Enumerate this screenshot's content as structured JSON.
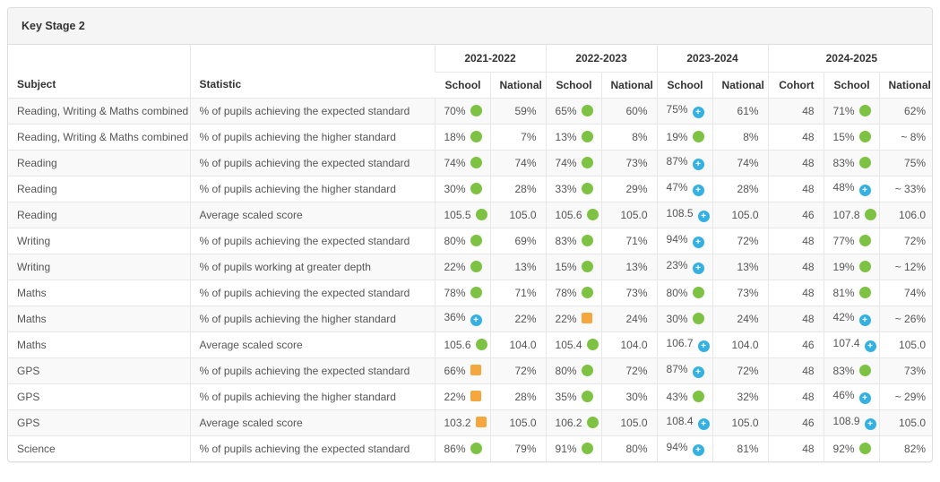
{
  "panel": {
    "title": "Key Stage 2"
  },
  "icon_colors": {
    "green-circle": "#7DC242",
    "blue-plus-circle": "#35B1E1",
    "orange-square": "#F5A63C"
  },
  "table": {
    "headers": {
      "subject": "Subject",
      "statistic": "Statistic",
      "groups": [
        {
          "label": "2021-2022",
          "span": 2
        },
        {
          "label": "2022-2023",
          "span": 2
        },
        {
          "label": "2023-2024",
          "span": 2
        },
        {
          "label": "2024-2025",
          "span": 3
        }
      ],
      "sub": [
        "School",
        "National",
        "School",
        "National",
        "School",
        "National",
        "Cohort",
        "School",
        "National"
      ]
    },
    "rows": [
      {
        "subject": "Reading, Writing & Maths combined",
        "statistic": "% of pupils achieving the expected standard",
        "cells": [
          {
            "v": "70%",
            "icon": "green-circle"
          },
          {
            "v": "59%"
          },
          {
            "v": "65%",
            "icon": "green-circle"
          },
          {
            "v": "60%"
          },
          {
            "v": "75%",
            "icon": "blue-plus-circle"
          },
          {
            "v": "61%"
          },
          {
            "v": "48"
          },
          {
            "v": "71%",
            "icon": "green-circle"
          },
          {
            "v": "62%"
          }
        ]
      },
      {
        "subject": "Reading, Writing & Maths combined",
        "statistic": "% of pupils achieving the higher standard",
        "cells": [
          {
            "v": "18%",
            "icon": "green-circle"
          },
          {
            "v": "7%"
          },
          {
            "v": "13%",
            "icon": "green-circle"
          },
          {
            "v": "8%"
          },
          {
            "v": "19%",
            "icon": "green-circle"
          },
          {
            "v": "8%"
          },
          {
            "v": "48"
          },
          {
            "v": "15%",
            "icon": "green-circle"
          },
          {
            "v": "~ 8%"
          }
        ]
      },
      {
        "subject": "Reading",
        "statistic": "% of pupils achieving the expected standard",
        "cells": [
          {
            "v": "74%",
            "icon": "green-circle"
          },
          {
            "v": "74%"
          },
          {
            "v": "74%",
            "icon": "green-circle"
          },
          {
            "v": "73%"
          },
          {
            "v": "87%",
            "icon": "blue-plus-circle"
          },
          {
            "v": "74%"
          },
          {
            "v": "48"
          },
          {
            "v": "83%",
            "icon": "green-circle"
          },
          {
            "v": "75%"
          }
        ]
      },
      {
        "subject": "Reading",
        "statistic": "% of pupils achieving the higher standard",
        "cells": [
          {
            "v": "30%",
            "icon": "green-circle"
          },
          {
            "v": "28%"
          },
          {
            "v": "33%",
            "icon": "green-circle"
          },
          {
            "v": "29%"
          },
          {
            "v": "47%",
            "icon": "blue-plus-circle"
          },
          {
            "v": "28%"
          },
          {
            "v": "48"
          },
          {
            "v": "48%",
            "icon": "blue-plus-circle"
          },
          {
            "v": "~ 33%"
          }
        ]
      },
      {
        "subject": "Reading",
        "statistic": "Average scaled score",
        "cells": [
          {
            "v": "105.5",
            "icon": "green-circle"
          },
          {
            "v": "105.0"
          },
          {
            "v": "105.6",
            "icon": "green-circle"
          },
          {
            "v": "105.0"
          },
          {
            "v": "108.5",
            "icon": "blue-plus-circle"
          },
          {
            "v": "105.0"
          },
          {
            "v": "46"
          },
          {
            "v": "107.8",
            "icon": "green-circle"
          },
          {
            "v": "106.0"
          }
        ]
      },
      {
        "subject": "Writing",
        "statistic": "% of pupils achieving the expected standard",
        "cells": [
          {
            "v": "80%",
            "icon": "green-circle"
          },
          {
            "v": "69%"
          },
          {
            "v": "83%",
            "icon": "green-circle"
          },
          {
            "v": "71%"
          },
          {
            "v": "94%",
            "icon": "blue-plus-circle"
          },
          {
            "v": "72%"
          },
          {
            "v": "48"
          },
          {
            "v": "77%",
            "icon": "green-circle"
          },
          {
            "v": "72%"
          }
        ]
      },
      {
        "subject": "Writing",
        "statistic": "% of pupils working at greater depth",
        "cells": [
          {
            "v": "22%",
            "icon": "green-circle"
          },
          {
            "v": "13%"
          },
          {
            "v": "15%",
            "icon": "green-circle"
          },
          {
            "v": "13%"
          },
          {
            "v": "23%",
            "icon": "blue-plus-circle"
          },
          {
            "v": "13%"
          },
          {
            "v": "48"
          },
          {
            "v": "19%",
            "icon": "green-circle"
          },
          {
            "v": "~ 12%"
          }
        ]
      },
      {
        "subject": "Maths",
        "statistic": "% of pupils achieving the expected standard",
        "cells": [
          {
            "v": "78%",
            "icon": "green-circle"
          },
          {
            "v": "71%"
          },
          {
            "v": "78%",
            "icon": "green-circle"
          },
          {
            "v": "73%"
          },
          {
            "v": "80%",
            "icon": "green-circle"
          },
          {
            "v": "73%"
          },
          {
            "v": "48"
          },
          {
            "v": "81%",
            "icon": "green-circle"
          },
          {
            "v": "74%"
          }
        ]
      },
      {
        "subject": "Maths",
        "statistic": "% of pupils achieving the higher standard",
        "cells": [
          {
            "v": "36%",
            "icon": "blue-plus-circle"
          },
          {
            "v": "22%"
          },
          {
            "v": "22%",
            "icon": "orange-square"
          },
          {
            "v": "24%"
          },
          {
            "v": "30%",
            "icon": "green-circle"
          },
          {
            "v": "24%"
          },
          {
            "v": "48"
          },
          {
            "v": "42%",
            "icon": "blue-plus-circle"
          },
          {
            "v": "~ 26%"
          }
        ]
      },
      {
        "subject": "Maths",
        "statistic": "Average scaled score",
        "cells": [
          {
            "v": "105.6",
            "icon": "green-circle"
          },
          {
            "v": "104.0"
          },
          {
            "v": "105.4",
            "icon": "green-circle"
          },
          {
            "v": "104.0"
          },
          {
            "v": "106.7",
            "icon": "blue-plus-circle"
          },
          {
            "v": "104.0"
          },
          {
            "v": "46"
          },
          {
            "v": "107.4",
            "icon": "blue-plus-circle"
          },
          {
            "v": "105.0"
          }
        ]
      },
      {
        "subject": "GPS",
        "statistic": "% of pupils achieving the expected standard",
        "cells": [
          {
            "v": "66%",
            "icon": "orange-square"
          },
          {
            "v": "72%"
          },
          {
            "v": "80%",
            "icon": "green-circle"
          },
          {
            "v": "72%"
          },
          {
            "v": "87%",
            "icon": "blue-plus-circle"
          },
          {
            "v": "72%"
          },
          {
            "v": "48"
          },
          {
            "v": "83%",
            "icon": "green-circle"
          },
          {
            "v": "73%"
          }
        ]
      },
      {
        "subject": "GPS",
        "statistic": "% of pupils achieving the higher standard",
        "cells": [
          {
            "v": "22%",
            "icon": "orange-square"
          },
          {
            "v": "28%"
          },
          {
            "v": "35%",
            "icon": "green-circle"
          },
          {
            "v": "30%"
          },
          {
            "v": "43%",
            "icon": "green-circle"
          },
          {
            "v": "32%"
          },
          {
            "v": "48"
          },
          {
            "v": "46%",
            "icon": "blue-plus-circle"
          },
          {
            "v": "~ 29%"
          }
        ]
      },
      {
        "subject": "GPS",
        "statistic": "Average scaled score",
        "cells": [
          {
            "v": "103.2",
            "icon": "orange-square"
          },
          {
            "v": "105.0"
          },
          {
            "v": "106.2",
            "icon": "green-circle"
          },
          {
            "v": "105.0"
          },
          {
            "v": "108.4",
            "icon": "blue-plus-circle"
          },
          {
            "v": "105.0"
          },
          {
            "v": "46"
          },
          {
            "v": "108.9",
            "icon": "blue-plus-circle"
          },
          {
            "v": "105.0"
          }
        ]
      },
      {
        "subject": "Science",
        "statistic": "% of pupils achieving the expected standard",
        "cells": [
          {
            "v": "86%",
            "icon": "green-circle"
          },
          {
            "v": "79%"
          },
          {
            "v": "91%",
            "icon": "green-circle"
          },
          {
            "v": "80%"
          },
          {
            "v": "94%",
            "icon": "blue-plus-circle"
          },
          {
            "v": "81%"
          },
          {
            "v": "48"
          },
          {
            "v": "92%",
            "icon": "green-circle"
          },
          {
            "v": "82%"
          }
        ]
      }
    ]
  }
}
